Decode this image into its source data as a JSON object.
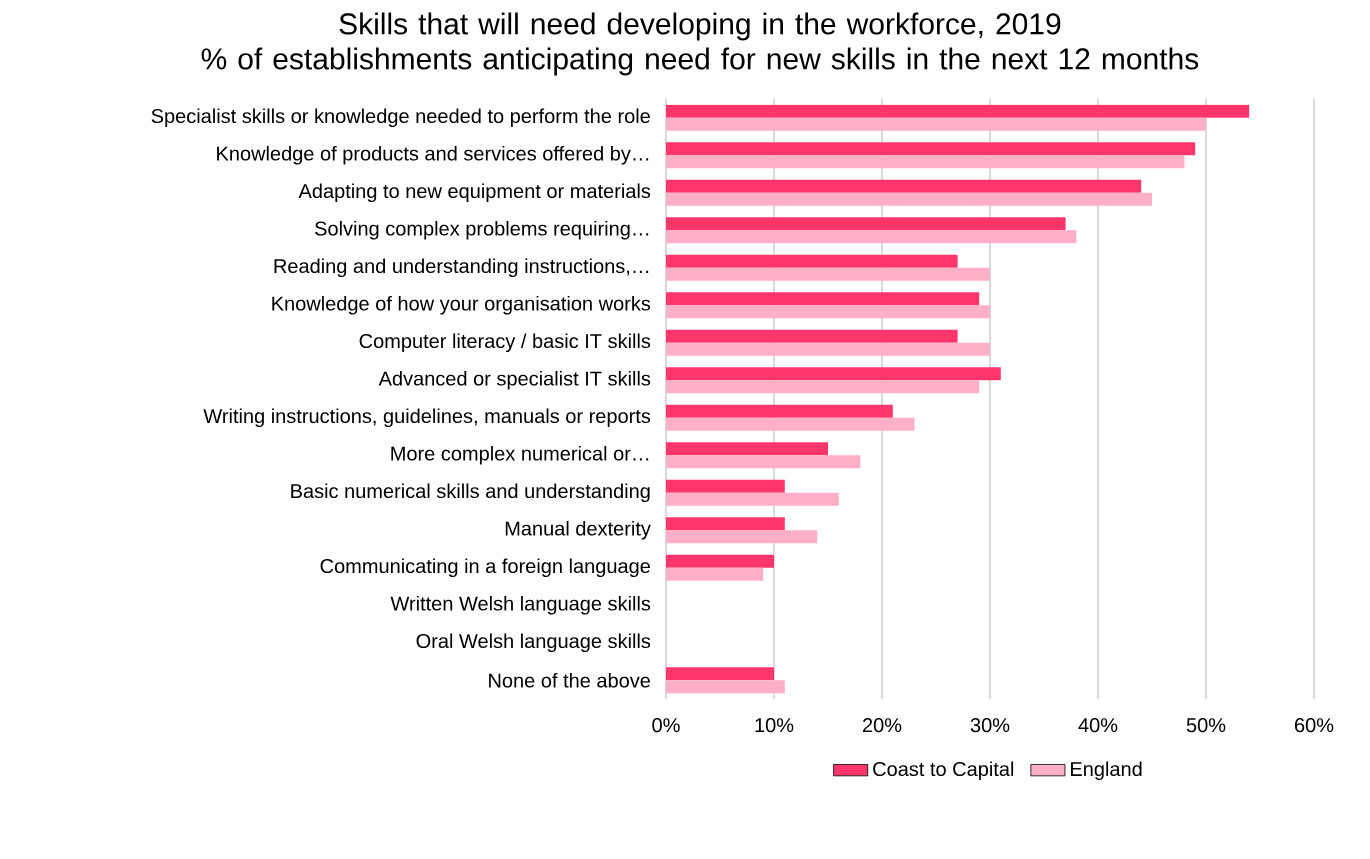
{
  "chart_data": {
    "type": "bar",
    "orientation": "horizontal",
    "title": "Skills that will need developing in the workforce, 2019",
    "subtitle": "% of establishments anticipating need for new skills in the next 12 months",
    "categories": [
      "Specialist skills or knowledge needed to perform the role",
      "Knowledge of products and services offered by…",
      "Adapting to new equipment or materials",
      "Solving complex problems requiring…",
      "Reading and understanding instructions,…",
      "Knowledge of how your organisation works",
      "Computer literacy / basic IT skills",
      "Advanced or specialist IT skills",
      "Writing instructions, guidelines, manuals or reports",
      "More complex numerical or…",
      "Basic numerical skills and understanding",
      "Manual dexterity",
      "Communicating in a foreign language",
      "Written Welsh language skills",
      "Oral Welsh language skills",
      "None of the above"
    ],
    "series": [
      {
        "name": "Coast to Capital",
        "color": "#ff366c",
        "values": [
          54,
          49,
          44,
          37,
          27,
          29,
          27,
          31,
          21,
          15,
          11,
          11,
          10,
          null,
          null,
          10
        ]
      },
      {
        "name": "England",
        "color": "#ffafc6",
        "values": [
          50,
          48,
          45,
          38,
          30,
          30,
          30,
          29,
          23,
          18,
          16,
          14,
          9,
          null,
          null,
          11
        ]
      }
    ],
    "xlim": [
      0,
      60
    ],
    "xticks": [
      {
        "value": 0,
        "label": "0%"
      },
      {
        "value": 10,
        "label": "10%"
      },
      {
        "value": 20,
        "label": "20%"
      },
      {
        "value": 30,
        "label": "30%"
      },
      {
        "value": 40,
        "label": "40%"
      },
      {
        "value": 50,
        "label": "50%"
      },
      {
        "value": 60,
        "label": "60%"
      }
    ],
    "grid": "x",
    "legend": "bottom"
  }
}
